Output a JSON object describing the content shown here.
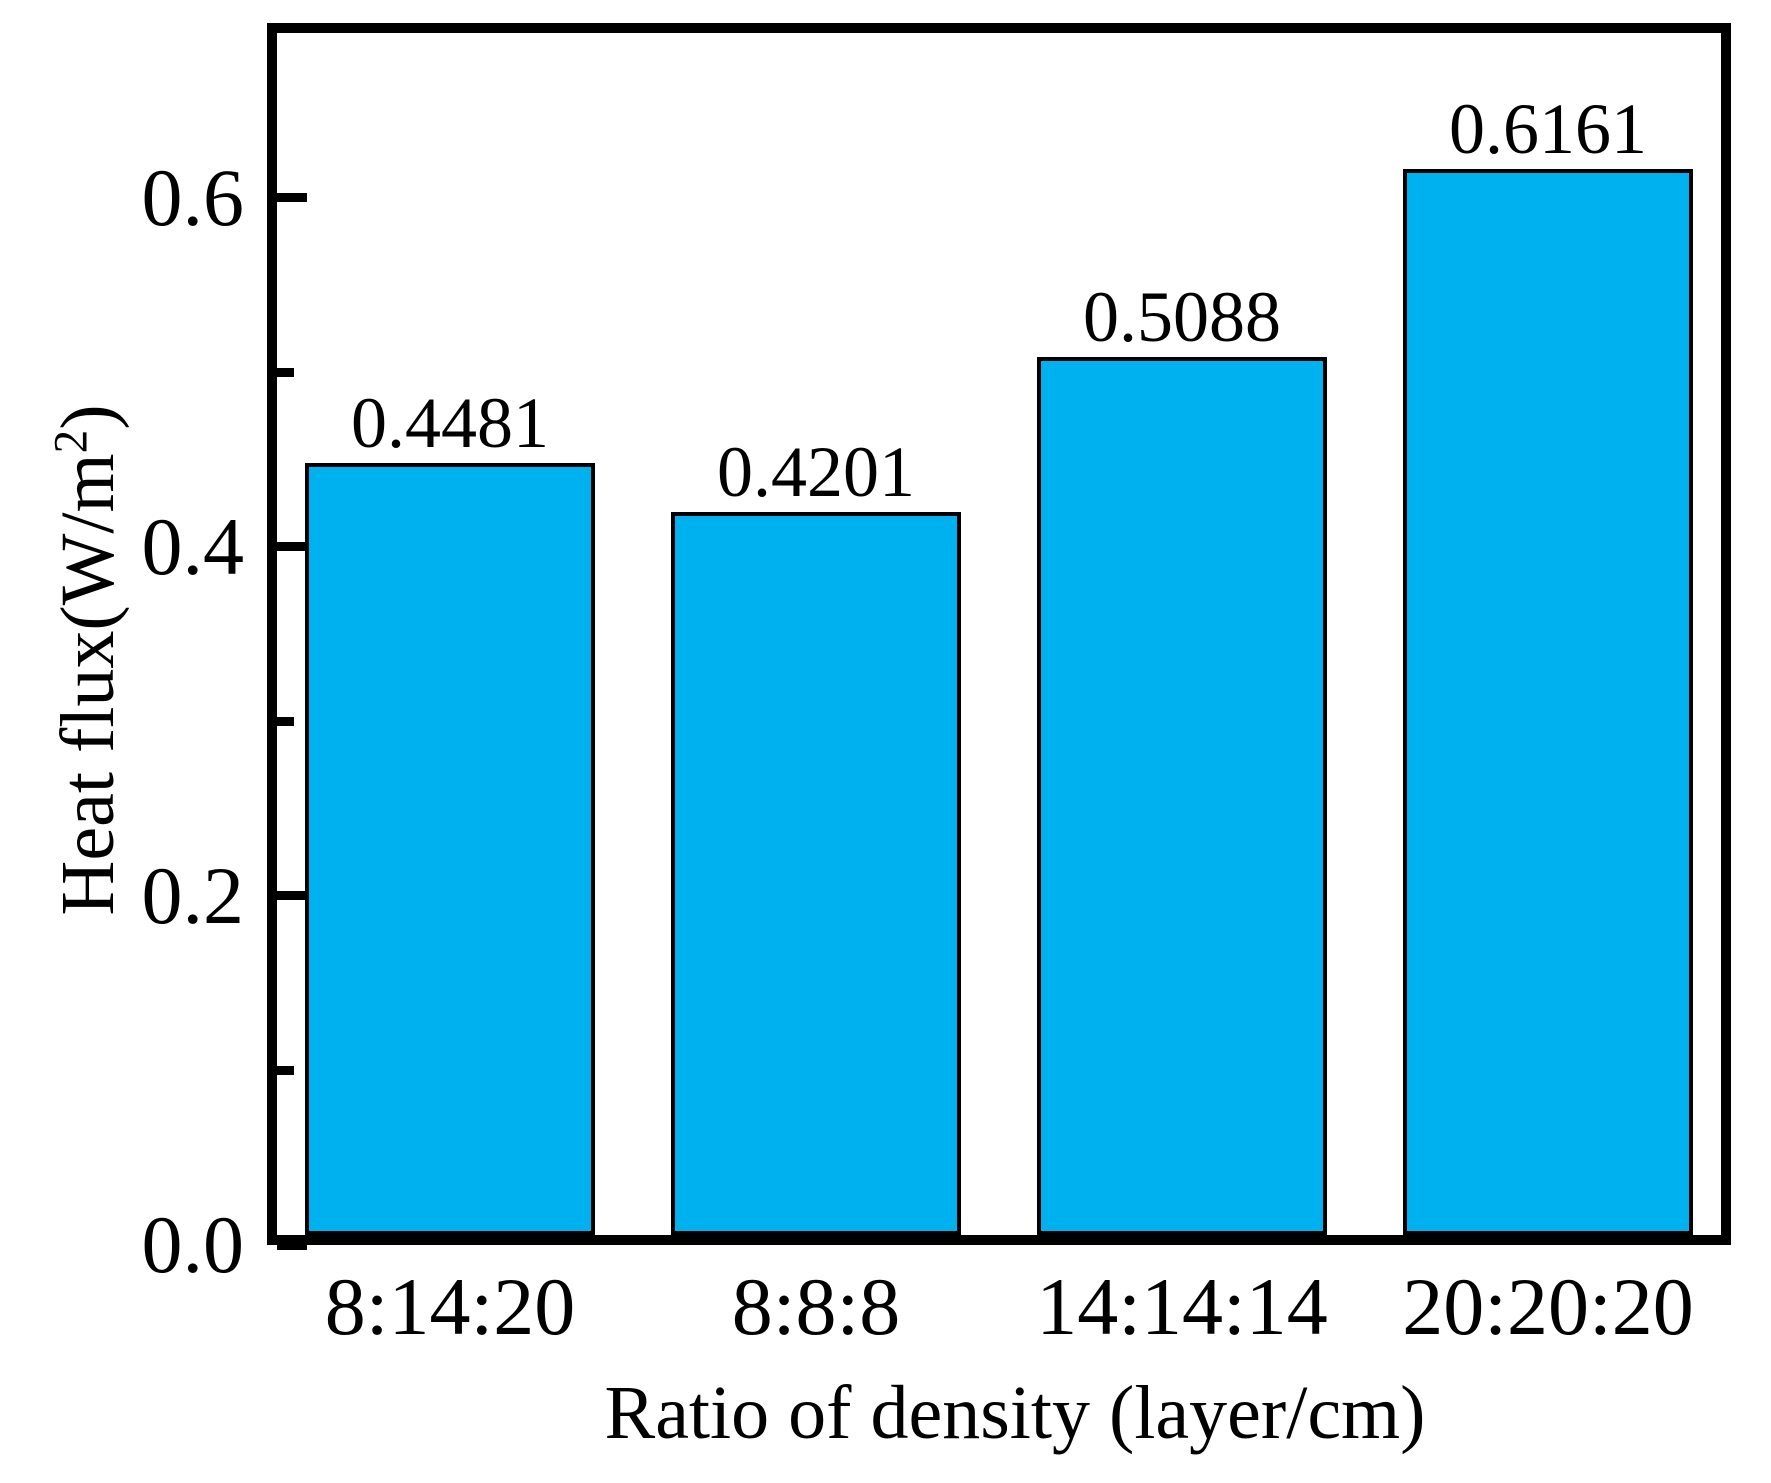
{
  "chart_data": {
    "type": "bar",
    "title": "",
    "categories": [
      "8:14:20",
      "8:8:8",
      "14:14:14",
      "20:20:20"
    ],
    "values": [
      0.4481,
      0.4201,
      0.5088,
      0.6161
    ],
    "value_labels": [
      "0.4481",
      "0.4201",
      "0.5088",
      "0.6161"
    ],
    "xlabel": "Ratio of density (layer/cm)",
    "ylabel": "Heat flux(W/m²)",
    "ylabel_parts": {
      "prefix": "Heat flux(W/m",
      "superscript": "2",
      "suffix": ")"
    },
    "ylim": [
      0,
      0.7
    ],
    "yticks": [
      0.0,
      0.2,
      0.4,
      0.6
    ],
    "ytick_labels": [
      "0.0",
      "0.2",
      "0.4",
      "0.6"
    ],
    "yticks_minor": [
      0.1,
      0.3,
      0.5
    ],
    "grid": false,
    "legend_position": "none",
    "colors": {
      "bar_fill": "#00B1F0",
      "bar_border": "#000000",
      "axis": "#000000",
      "text": "#000000",
      "background": "#FFFFFF"
    }
  }
}
